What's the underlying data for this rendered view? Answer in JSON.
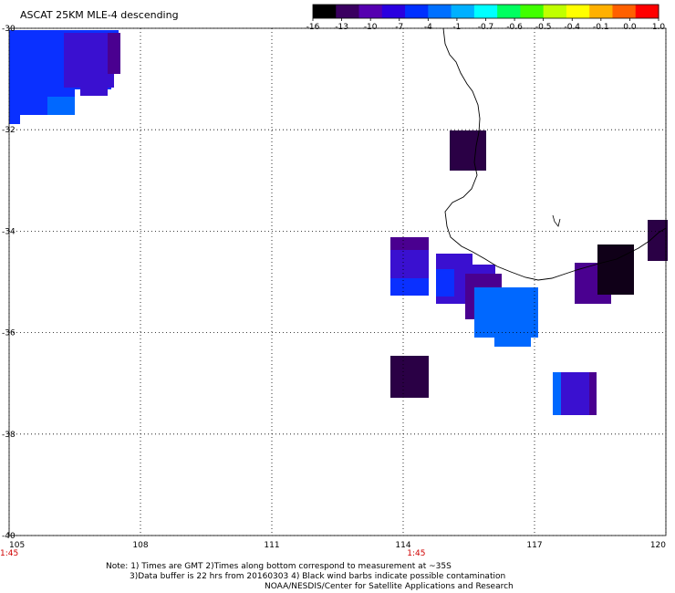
{
  "title": "ASCAT 25KM MLE-4 descending",
  "colorbar": {
    "labels": [
      "-16",
      "-13",
      "-10",
      "-7",
      "-4",
      "-1",
      "-0.7",
      "-0.6",
      "-0.5",
      "-0.4",
      "-0.1",
      "0.0",
      "1.0"
    ],
    "colors": [
      "#000000",
      "#3a0060",
      "#5500b0",
      "#2a00e0",
      "#0030ff",
      "#0070ff",
      "#00b0ff",
      "#00ffff",
      "#00ff60",
      "#40ff00",
      "#c0ff00",
      "#ffff00",
      "#ffb000",
      "#ff6000",
      "#ff0000"
    ]
  },
  "axes": {
    "lon_ticks": [
      "105",
      "108",
      "111",
      "114",
      "117",
      "120"
    ],
    "lat_ticks": [
      "-30",
      "-32",
      "-34",
      "-36",
      "-38",
      "-40"
    ],
    "lon_range": [
      105,
      120
    ],
    "lat_range": [
      -30,
      -40
    ]
  },
  "times": [
    {
      "lon": 105,
      "label": "1:45"
    },
    {
      "lon": 114.3,
      "label": "1:45"
    }
  ],
  "notes": {
    "line1": "Note: 1) Times are GMT 2)Times along bottom correspond to measurement at ~35S",
    "line2": "3)Data buffer is 22 hrs from 20160303 4) Black wind barbs indicate possible contamination",
    "line3": "NOAA/NESDIS/Center for Satellite Applications and Research"
  },
  "swath_colors": {
    "blue": "#0a30ff",
    "light_blue": "#0068ff",
    "violet": "#3a10d0",
    "purple": "#4a0090",
    "dark_purple": "#2a0045",
    "black_purple": "#100018"
  }
}
